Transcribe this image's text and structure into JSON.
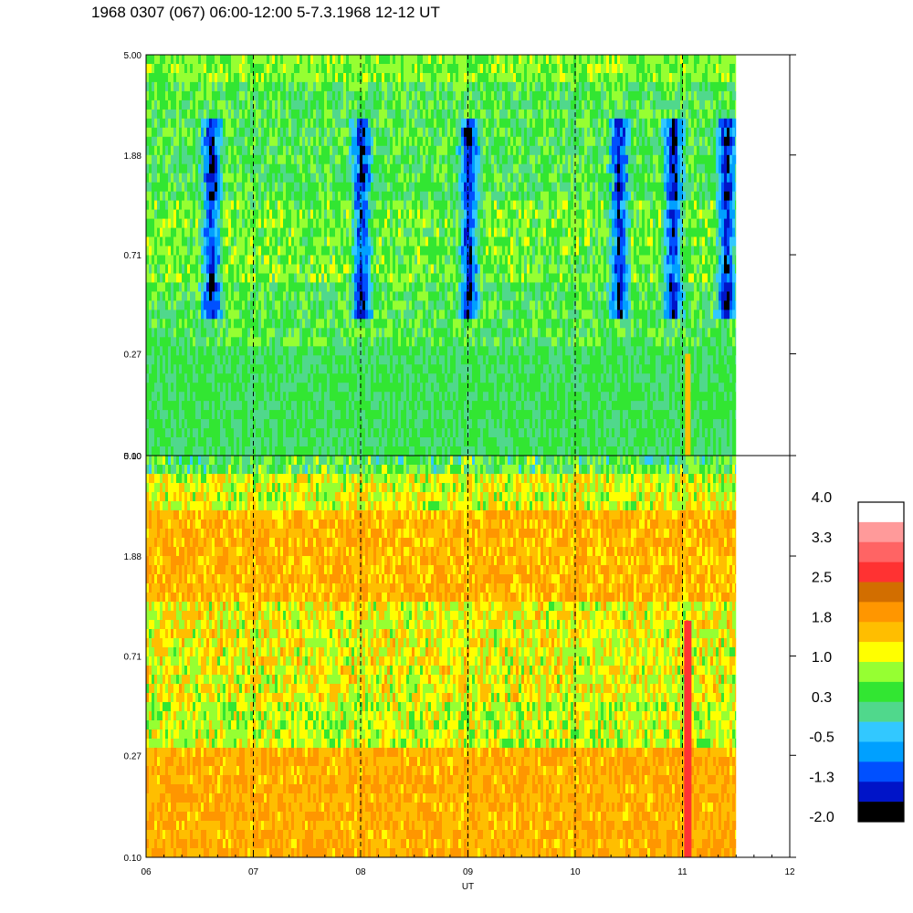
{
  "title": "1968 0307 (067) 06:00-12:00 5-7.3.1968  12-12 UT",
  "chart_data": [
    {
      "type": "heatmap",
      "panel": "upper",
      "x_axis": {
        "label": "UT",
        "range": [
          6,
          12
        ],
        "ticks": [
          "06",
          "07",
          "08",
          "09",
          "10",
          "11",
          "12"
        ]
      },
      "y_axis": {
        "scale": "log",
        "range": [
          0.1,
          5.0
        ],
        "ticks": [
          "0.10",
          "0.27",
          "0.71",
          "1.88",
          "5.00"
        ]
      },
      "data_end_x": 11.5,
      "dashed_marker_hours": [
        7,
        8,
        9,
        10,
        11
      ],
      "dominant_level": 0.3,
      "notes": "spectral intensity mostly green/cyan; dark-blue minima near 06.6, 08.0, 09.0, 10.4, 10.9 and 11.4 UT between 0.5 and 2 on the y axis"
    },
    {
      "type": "heatmap",
      "panel": "lower",
      "x_axis": {
        "label": "UT",
        "range": [
          6,
          12
        ],
        "ticks": [
          "06",
          "07",
          "08",
          "09",
          "10",
          "11",
          "12"
        ]
      },
      "y_axis": {
        "scale": "log",
        "range": [
          0.1,
          5.0
        ],
        "ticks": [
          "0.10",
          "0.27",
          "0.71",
          "1.88",
          "5.00"
        ]
      },
      "data_end_x": 11.5,
      "dashed_marker_hours": [
        7,
        8,
        9,
        10,
        11
      ],
      "dominant_level": 1.8,
      "notes": "mostly yellow/orange; red vertical stripe near 11.05 UT below 1.0 on the y axis"
    }
  ],
  "colorbar": {
    "labels": [
      "4.0",
      "3.3",
      "2.5",
      "1.8",
      "1.0",
      "0.3",
      "-0.5",
      "-1.3",
      "-2.0"
    ],
    "colors": [
      "#ffffff",
      "#ff9a9a",
      "#ff6464",
      "#ff3232",
      "#d26e00",
      "#ff9600",
      "#ffbe00",
      "#ffff00",
      "#96ff32",
      "#32e632",
      "#50d88c",
      "#32c8ff",
      "#00a0ff",
      "#0050ff",
      "#0014c8",
      "#000000"
    ]
  }
}
